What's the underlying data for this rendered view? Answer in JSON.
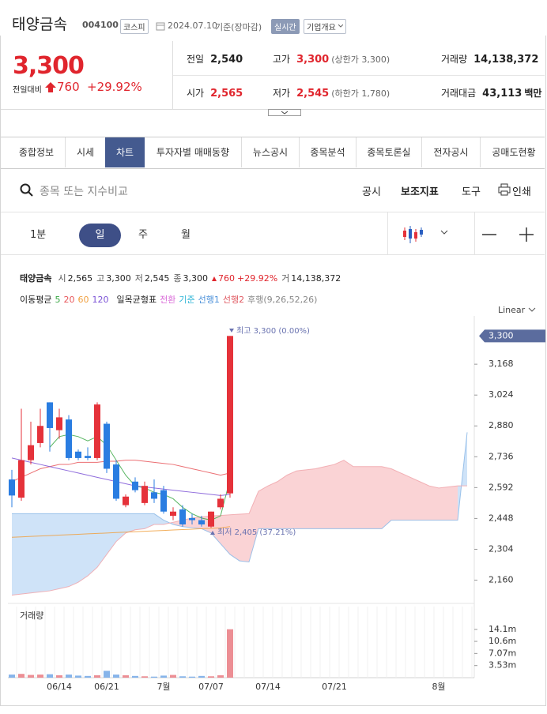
{
  "header": {
    "name": "태양금속",
    "code": "004100",
    "market": "코스피",
    "date": "2024.07.10",
    "basis": "기준(장마감)",
    "realtime": "실시간",
    "company": "기업개요"
  },
  "quote": {
    "price": "3,300",
    "change_label": "전일대비",
    "change": "760",
    "rate": "+29.92%"
  },
  "stats": [
    {
      "label": "전일",
      "value": "2,540",
      "color": "#222222"
    },
    {
      "label": "고가",
      "value": "3,300",
      "note": "(상한가 3,300)",
      "color": "#e0252d"
    },
    {
      "label": "거래량",
      "value": "14,138,372",
      "color": "#222222"
    },
    {
      "label": "시가",
      "value": "2,565",
      "color": "#e0252d"
    },
    {
      "label": "저가",
      "value": "2,545",
      "note": "(하한가 1,780)",
      "color": "#e0252d"
    },
    {
      "label": "거래대금",
      "value": "43,113",
      "unit": "백만",
      "color": "#222222"
    }
  ],
  "tabs": [
    {
      "label": "종합정보"
    },
    {
      "label": "시세"
    },
    {
      "label": "차트",
      "active": true
    },
    {
      "label": "투자자별 매매동향"
    },
    {
      "label": "뉴스공시"
    },
    {
      "label": "종목분석"
    },
    {
      "label": "종목토론실"
    },
    {
      "label": "전자공시"
    },
    {
      "label": "공매도현황"
    }
  ],
  "search": {
    "placeholder": "종목 또는 지수비교"
  },
  "tools": [
    "공시",
    "보조지표",
    "도구",
    "인쇄"
  ],
  "periods": [
    {
      "label": "1분"
    },
    {
      "label": "일",
      "active": true
    },
    {
      "label": "주"
    },
    {
      "label": "월"
    }
  ],
  "chart_data": {
    "type": "candlestick",
    "info": {
      "name": "태양금속",
      "items": [
        {
          "label": "시",
          "value": "2,565"
        },
        {
          "label": "고",
          "value": "3,300"
        },
        {
          "label": "저",
          "value": "2,545"
        },
        {
          "label": "종",
          "value": "3,300"
        }
      ],
      "change": "760",
      "rate": "+29.92%",
      "volume_label": "거",
      "volume": "14,138,372"
    },
    "scale": "Linear",
    "up_color": "#e5323a",
    "down_color": "#2a7de1",
    "categories": [
      null,
      null,
      null,
      null,
      null,
      "06/14",
      null,
      null,
      null,
      null,
      "06/21",
      null,
      null,
      null,
      null,
      null,
      "7월",
      null,
      null,
      null,
      null,
      "07/07",
      null,
      null,
      null,
      null,
      null,
      "07/14",
      null,
      null,
      null,
      null,
      null,
      null,
      "07/21",
      null,
      null,
      null,
      null,
      null,
      null,
      null,
      null,
      null,
      null,
      "8월",
      null,
      null,
      null
    ],
    "open": [
      2630,
      2545,
      2720,
      2800,
      2990,
      2860,
      2910,
      2760,
      2740,
      2730,
      2890,
      2700,
      2510,
      2620,
      2520,
      2570,
      2580,
      2460,
      2490,
      2450,
      2440,
      2410,
      2500,
      2565,
      null,
      null,
      null,
      null,
      null,
      null,
      null,
      null,
      null,
      null,
      null,
      null,
      null,
      null,
      null,
      null,
      null,
      null,
      null,
      null,
      null,
      null,
      null,
      null,
      null
    ],
    "high": [
      2675,
      2960,
      2900,
      2960,
      2990,
      2960,
      2930,
      2770,
      2780,
      2990,
      2900,
      2720,
      2560,
      2640,
      2620,
      2630,
      2600,
      2500,
      2510,
      2470,
      2460,
      2480,
      2560,
      3300,
      null,
      null,
      null,
      null,
      null,
      null,
      null,
      null,
      null,
      null,
      null,
      null,
      null,
      null,
      null,
      null,
      null,
      null,
      null,
      null,
      null,
      null,
      null,
      null,
      null
    ],
    "low": [
      2500,
      2530,
      2700,
      2780,
      2760,
      2820,
      2720,
      2720,
      2720,
      2720,
      2660,
      2530,
      2500,
      2570,
      2510,
      2520,
      2470,
      2440,
      2410,
      2420,
      2410,
      2405,
      2490,
      2545,
      null,
      null,
      null,
      null,
      null,
      null,
      null,
      null,
      null,
      null,
      null,
      null,
      null,
      null,
      null,
      null,
      null,
      null,
      null,
      null,
      null,
      null,
      null,
      null,
      null
    ],
    "close": [
      2555,
      2720,
      2790,
      2880,
      2870,
      2920,
      2730,
      2730,
      2730,
      2980,
      2680,
      2540,
      2550,
      2580,
      2600,
      2540,
      2480,
      2480,
      2420,
      2440,
      2420,
      2480,
      2540,
      3300,
      null,
      null,
      null,
      null,
      null,
      null,
      null,
      null,
      null,
      null,
      null,
      null,
      null,
      null,
      null,
      null,
      null,
      null,
      null,
      null,
      null,
      null,
      null,
      null,
      null
    ],
    "ylim": [
      2066,
      3375
    ],
    "yticks": [
      {
        "value": 3168,
        "label": "3,168"
      },
      {
        "value": 3024,
        "label": "3,024"
      },
      {
        "value": 2880,
        "label": "2,880"
      },
      {
        "value": 2736,
        "label": "2,736"
      },
      {
        "value": 2592,
        "label": "2,592"
      },
      {
        "value": 2448,
        "label": "2,448"
      },
      {
        "value": 2304,
        "label": "2,304"
      },
      {
        "value": 2160,
        "label": "2,160"
      }
    ],
    "last_label": "3,300",
    "high_label": "최고 3,300 (0.00%)",
    "low_label": "최저 2,405 (37.21%)",
    "ma_label": "이동평균",
    "ma": [
      {
        "name": "5",
        "color": "#3aa845",
        "values": [
          null,
          null,
          null,
          null,
          2780,
          2830,
          2840,
          2830,
          2810,
          2830,
          2790,
          2720,
          2650,
          2600,
          2590,
          2570,
          2560,
          2540,
          2500,
          2470,
          2450,
          2440,
          2460,
          2630,
          null,
          null,
          null,
          null,
          null,
          null,
          null,
          null,
          null,
          null,
          null,
          null,
          null,
          null,
          null,
          null,
          null,
          null,
          null,
          null,
          null,
          null,
          null,
          null,
          null
        ]
      },
      {
        "name": "20",
        "color": "#e8565a",
        "values": [
          2620,
          2640,
          2660,
          2680,
          2690,
          2700,
          2700,
          2710,
          2710,
          2710,
          2715,
          2715,
          2720,
          2720,
          2715,
          2710,
          2705,
          2700,
          2690,
          2680,
          2670,
          2660,
          2650,
          2660,
          null,
          null,
          null,
          null,
          null,
          null,
          null,
          null,
          null,
          null,
          null,
          null,
          null,
          null,
          null,
          null,
          null,
          null,
          null,
          null,
          null,
          null,
          null,
          null,
          null
        ]
      },
      {
        "name": "60",
        "color": "#f0a040",
        "values": [
          2360,
          2362,
          2364,
          2366,
          2368,
          2370,
          2372,
          2374,
          2376,
          2378,
          2380,
          2382,
          2384,
          2386,
          2388,
          2390,
          2392,
          2394,
          2396,
          2398,
          2400,
          2402,
          2404,
          2410,
          null,
          null,
          null,
          null,
          null,
          null,
          null,
          null,
          null,
          null,
          null,
          null,
          null,
          null,
          null,
          null,
          null,
          null,
          null,
          null,
          null,
          null,
          null,
          null,
          null
        ]
      },
      {
        "name": "120",
        "color": "#7b52d6",
        "values": [
          2730,
          2720,
          2710,
          2700,
          2690,
          2680,
          2670,
          2660,
          2650,
          2640,
          2630,
          2620,
          2610,
          2600,
          2595,
          2590,
          2585,
          2580,
          2575,
          2570,
          2565,
          2560,
          2555,
          2560,
          null,
          null,
          null,
          null,
          null,
          null,
          null,
          null,
          null,
          null,
          null,
          null,
          null,
          null,
          null,
          null,
          null,
          null,
          null,
          null,
          null,
          null,
          null,
          null,
          null
        ]
      }
    ],
    "ichimoku": {
      "label": "일목균형표",
      "conversion": {
        "name": "전환",
        "color": "#d96ad8"
      },
      "base": {
        "name": "기준",
        "color": "#2cb4d6"
      },
      "span_a": {
        "name": "선행1",
        "color": "#4a90d9",
        "values": [
          2470,
          2470,
          2470,
          2470,
          2470,
          2470,
          2470,
          2470,
          2470,
          2470,
          2470,
          2470,
          2470,
          2470,
          2470,
          2470,
          2440,
          2420,
          2410,
          2405,
          2400,
          2380,
          2330,
          2280,
          2250,
          2245,
          2400,
          2400,
          2400,
          2400,
          2400,
          2400,
          2400,
          2400,
          2400,
          2400,
          2400,
          2400,
          2400,
          2400,
          2440,
          2440,
          2440,
          2440,
          2440,
          2440,
          2440,
          2440,
          2850
        ]
      },
      "span_b": {
        "name": "선행2",
        "color": "#e05a62",
        "values": [
          2090,
          2095,
          2100,
          2105,
          2110,
          2120,
          2130,
          2150,
          2180,
          2220,
          2280,
          2340,
          2380,
          2395,
          2400,
          2420,
          2420,
          2430,
          2440,
          2450,
          2455,
          2460,
          2462,
          2465,
          2468,
          2470,
          2575,
          2600,
          2620,
          2650,
          2670,
          2675,
          2680,
          2690,
          2700,
          2720,
          2690,
          2690,
          2690,
          2690,
          2680,
          2660,
          2640,
          2620,
          2600,
          2590,
          2595,
          2600,
          2600
        ]
      },
      "lagging": {
        "name": "후행(9,26,52,26)",
        "color": "#888888"
      }
    },
    "volume": {
      "label": "거래량",
      "values": [
        900000,
        1100000,
        800000,
        900000,
        1000000,
        700000,
        900000,
        600000,
        500000,
        700000,
        2000000,
        900000,
        700000,
        500000,
        400000,
        300000,
        600000,
        800000,
        400000,
        300000,
        500000,
        400000,
        700000,
        14138372,
        null,
        null,
        null,
        null,
        null,
        null,
        null,
        null,
        null,
        null,
        null,
        null,
        null,
        null,
        null,
        null,
        null,
        null,
        null,
        null,
        null,
        null,
        null,
        null,
        null
      ],
      "ylim": [
        0,
        20300000
      ],
      "yticks": [
        {
          "value": 14100000,
          "label": "14.1m"
        },
        {
          "value": 10600000,
          "label": "10.6m"
        },
        {
          "value": 7070000,
          "label": "7.07m"
        },
        {
          "value": 3530000,
          "label": "3.53m"
        }
      ]
    }
  }
}
